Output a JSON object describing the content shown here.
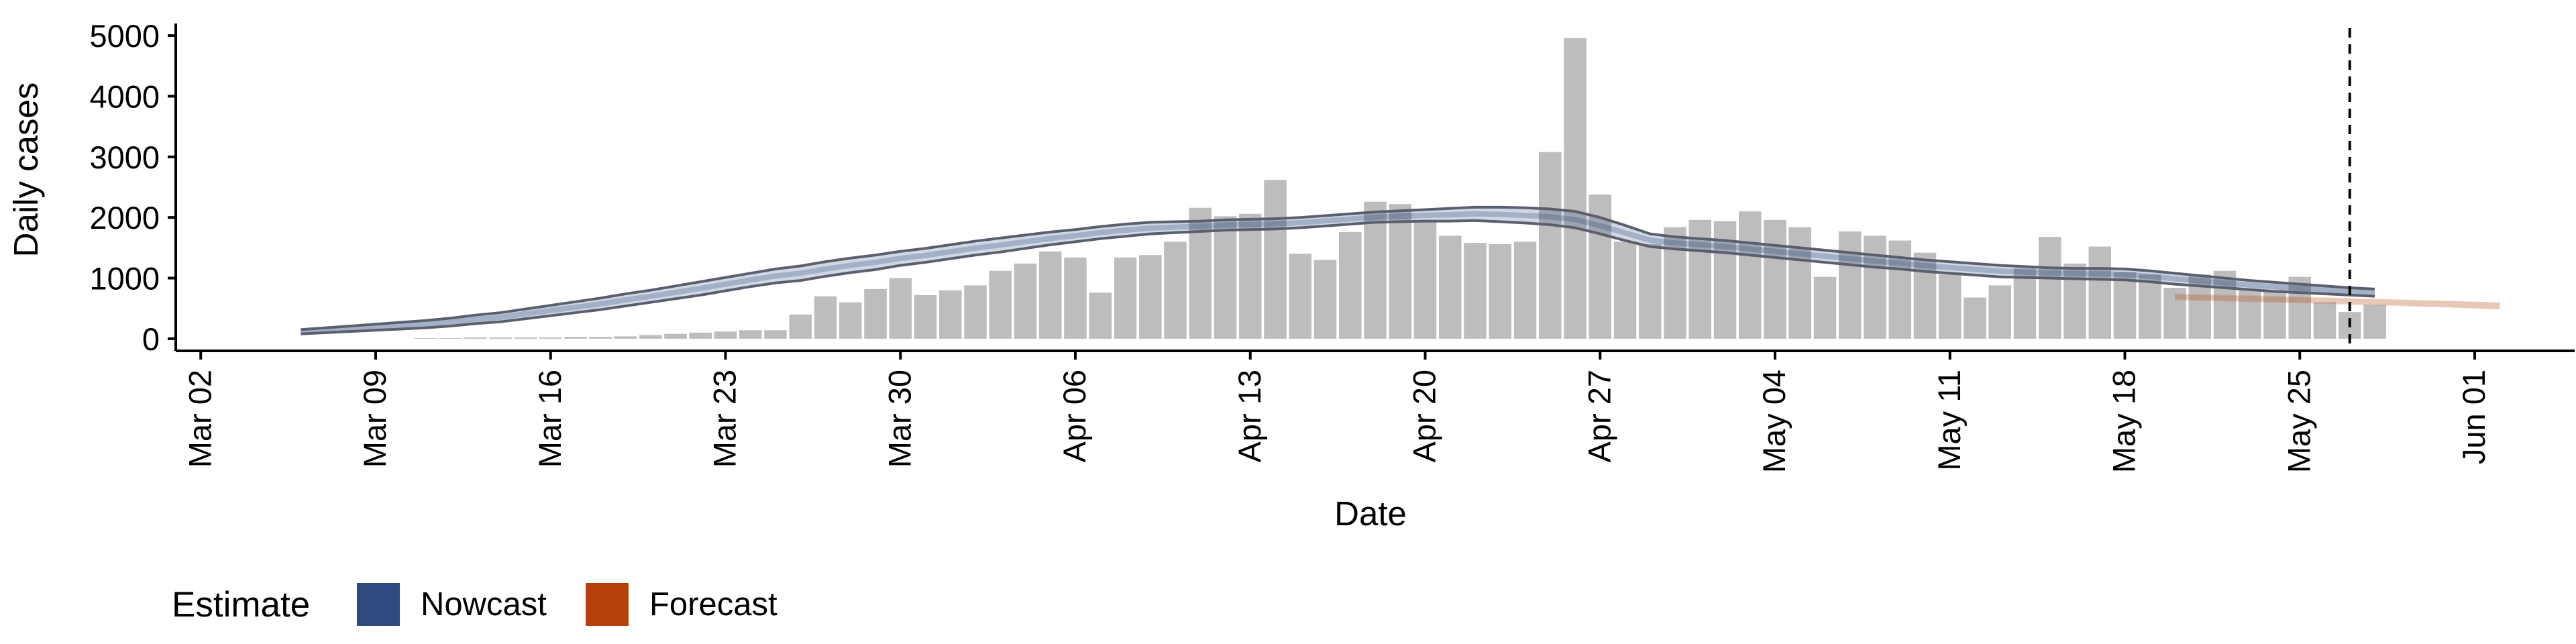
{
  "chart_data": {
    "type": "bar",
    "xlabel": "Date",
    "ylabel": "Daily cases",
    "ylim": [
      -200,
      5200
    ],
    "y_ticks": [
      0,
      1000,
      2000,
      3000,
      4000,
      5000
    ],
    "x_range": [
      "2020-03-01",
      "2020-06-05"
    ],
    "x_ticks": [
      {
        "date": "2020-03-02",
        "label": "Mar 02"
      },
      {
        "date": "2020-03-09",
        "label": "Mar 09"
      },
      {
        "date": "2020-03-16",
        "label": "Mar 16"
      },
      {
        "date": "2020-03-23",
        "label": "Mar 23"
      },
      {
        "date": "2020-03-30",
        "label": "Mar 30"
      },
      {
        "date": "2020-04-06",
        "label": "Apr 06"
      },
      {
        "date": "2020-04-13",
        "label": "Apr 13"
      },
      {
        "date": "2020-04-20",
        "label": "Apr 20"
      },
      {
        "date": "2020-04-27",
        "label": "Apr 27"
      },
      {
        "date": "2020-05-04",
        "label": "May 04"
      },
      {
        "date": "2020-05-11",
        "label": "May 11"
      },
      {
        "date": "2020-05-18",
        "label": "May 18"
      },
      {
        "date": "2020-05-25",
        "label": "May 25"
      },
      {
        "date": "2020-06-01",
        "label": "Jun 01"
      }
    ],
    "bars": {
      "color": "#bdbdbd",
      "start_date": "2020-03-07",
      "values": [
        0,
        0,
        0,
        0,
        10,
        10,
        20,
        20,
        20,
        20,
        30,
        30,
        40,
        60,
        80,
        100,
        120,
        140,
        140,
        400,
        700,
        600,
        820,
        1000,
        720,
        800,
        880,
        1120,
        1240,
        1440,
        1340,
        760,
        1340,
        1380,
        1600,
        2160,
        2020,
        2060,
        2620,
        1400,
        1300,
        1760,
        2260,
        2220,
        1960,
        1700,
        1580,
        1560,
        1600,
        3080,
        4960,
        2380,
        1600,
        1560,
        1840,
        1960,
        1940,
        2100,
        1960,
        1840,
        1020,
        1770,
        1700,
        1620,
        1420,
        1060,
        680,
        880,
        1160,
        1680,
        1240,
        1520,
        1100,
        1060,
        840,
        1060,
        1120,
        820,
        800,
        1020,
        600,
        440,
        560
      ]
    },
    "series": [
      {
        "name": "Nowcast",
        "color": "#2f4a7f",
        "start_date": "2020-03-06",
        "upper": [
          150,
          180,
          210,
          240,
          270,
          300,
          340,
          390,
          430,
          490,
          550,
          610,
          670,
          740,
          800,
          870,
          940,
          1010,
          1080,
          1150,
          1200,
          1270,
          1330,
          1380,
          1440,
          1490,
          1550,
          1610,
          1660,
          1710,
          1760,
          1800,
          1850,
          1890,
          1920,
          1930,
          1940,
          1960,
          1970,
          1980,
          2000,
          2030,
          2060,
          2090,
          2110,
          2130,
          2150,
          2170,
          2170,
          2160,
          2140,
          2100,
          2000,
          1870,
          1730,
          1680,
          1650,
          1620,
          1580,
          1540,
          1500,
          1460,
          1420,
          1380,
          1340,
          1300,
          1270,
          1240,
          1210,
          1190,
          1170,
          1160,
          1160,
          1150,
          1120,
          1080,
          1040,
          1000,
          960,
          930,
          900,
          870,
          840,
          820
        ],
        "lower": [
          80,
          100,
          120,
          140,
          160,
          180,
          210,
          250,
          280,
          330,
          380,
          430,
          480,
          540,
          600,
          660,
          720,
          790,
          860,
          920,
          960,
          1030,
          1090,
          1140,
          1210,
          1260,
          1320,
          1380,
          1430,
          1490,
          1550,
          1600,
          1650,
          1690,
          1730,
          1750,
          1770,
          1790,
          1800,
          1810,
          1830,
          1860,
          1890,
          1920,
          1930,
          1940,
          1940,
          1950,
          1930,
          1910,
          1880,
          1830,
          1730,
          1620,
          1520,
          1480,
          1450,
          1420,
          1380,
          1340,
          1300,
          1260,
          1220,
          1180,
          1150,
          1110,
          1080,
          1050,
          1020,
          1010,
          1000,
          990,
          980,
          970,
          940,
          900,
          870,
          840,
          810,
          780,
          760,
          740,
          720,
          700
        ]
      },
      {
        "name": "Forecast",
        "color": "#b5400a",
        "start_date": "2020-05-20",
        "upper": [
          730,
          720,
          710,
          700,
          690,
          680,
          670,
          660,
          650,
          640,
          630,
          620,
          610,
          600
        ],
        "lower": [
          650,
          640,
          630,
          620,
          610,
          600,
          590,
          570,
          560,
          550,
          530,
          520,
          500,
          480
        ]
      }
    ],
    "vline": {
      "date": "2020-05-27",
      "style": "dashed"
    },
    "legend": {
      "position": "bottom-left",
      "title": "Estimate",
      "items": [
        {
          "label": "Nowcast",
          "color": "#2f4a7f"
        },
        {
          "label": "Forecast",
          "color": "#b5400a"
        }
      ]
    }
  }
}
